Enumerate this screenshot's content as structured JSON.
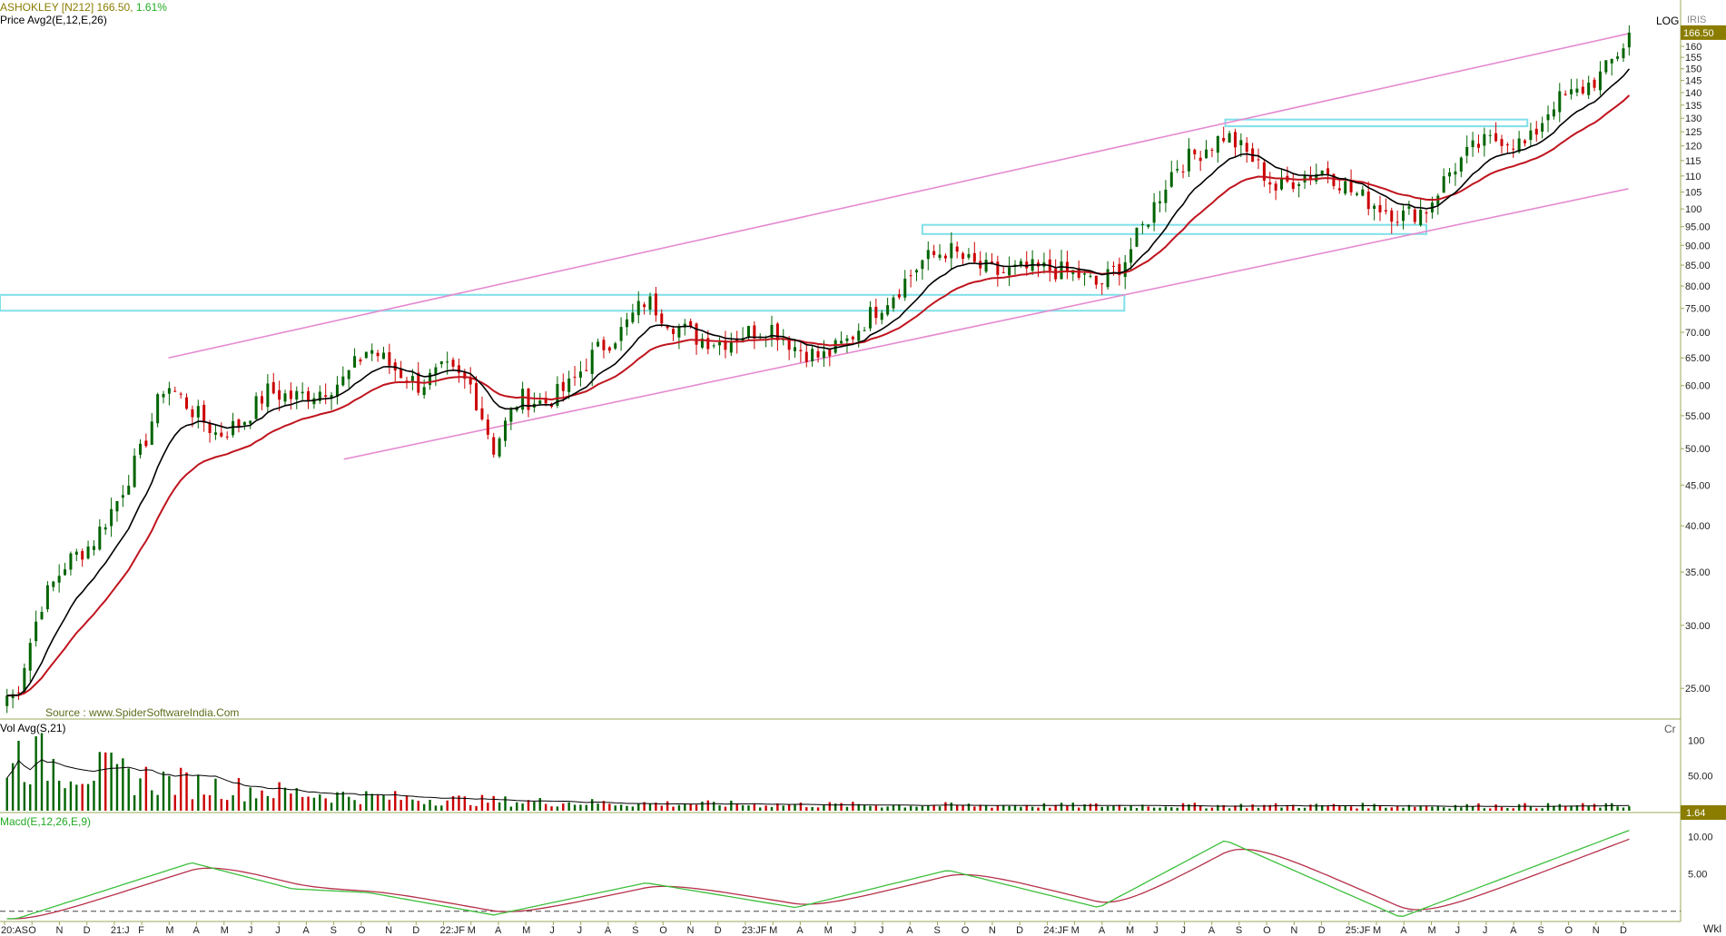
{
  "header": {
    "symbol": "ASHOKLEY [N212]",
    "last": "166.50,",
    "change": "1.61%",
    "indicator_line": "Price  Avg2(E,12,E,26)",
    "scale_mode": "LOG",
    "scale_tag": "IRIS",
    "source": "Source : www.SpiderSoftwareIndia.Com"
  },
  "colors": {
    "up": "#006400",
    "down": "#cc0000",
    "ema12": "#000000",
    "ema26": "#c0141e",
    "channel": "#e58ad0",
    "zone": "#7fe0e8",
    "macd": "#3cbf3c",
    "signal": "#b5304a",
    "axis": "#6b8e23",
    "price_tag_bg": "#8b7d00"
  },
  "price_pane": {
    "yaxis_ticks": [
      "160",
      "155",
      "150",
      "145",
      "140",
      "135",
      "130",
      "125",
      "120",
      "115",
      "110",
      "105",
      "100",
      "95.00",
      "90.00",
      "85.00",
      "80.00",
      "75.00",
      "70.00",
      "65.00",
      "60.00",
      "55.00",
      "50.00",
      "45.00",
      "40.00",
      "35.00",
      "30.00",
      "25.00"
    ],
    "last_price_tag": "166.50"
  },
  "volume_pane": {
    "label": "Vol  Avg(S,21)",
    "unit": "Cr",
    "yaxis_ticks": [
      "100",
      "50.00"
    ],
    "last_tag": "1.64"
  },
  "macd_pane": {
    "label": "Macd(E,12,26,E,9)",
    "yaxis_ticks": [
      "10.00",
      "5.00"
    ]
  },
  "xaxis": {
    "labels": [
      "20:AS",
      "O",
      "N",
      "D",
      "21:J",
      "F",
      "M",
      "A",
      "M",
      "J",
      "J",
      "A",
      "S",
      "O",
      "N",
      "D",
      "22:JF",
      "M",
      "A",
      "M",
      "J",
      "J",
      "A",
      "S",
      "O",
      "N",
      "D",
      "23:JF",
      "M",
      "A",
      "M",
      "J",
      "J",
      "A",
      "S",
      "O",
      "N",
      "D",
      "24:JF",
      "M",
      "A",
      "M",
      "J",
      "J",
      "A",
      "S",
      "O",
      "N",
      "D",
      "25:JF",
      "M",
      "A",
      "M",
      "J",
      "J",
      "A",
      "S",
      "O",
      "N",
      "D"
    ],
    "period": "Wkl"
  },
  "chart_data": {
    "type": "candlestick",
    "title": "ASHOKLEY [N212]",
    "scale": "log",
    "period": "weekly",
    "ylim": [
      23,
      170
    ],
    "last_close": 166.5,
    "change_pct": 1.61,
    "x_range": [
      "2020-08",
      "2025-12"
    ],
    "close_keypoints": [
      {
        "date": "2020-08",
        "close": 24.5
      },
      {
        "date": "2020-09",
        "close": 32
      },
      {
        "date": "2020-10",
        "close": 36
      },
      {
        "date": "2020-11",
        "close": 38
      },
      {
        "date": "2020-12",
        "close": 43
      },
      {
        "date": "2021-01",
        "close": 50
      },
      {
        "date": "2021-02",
        "close": 62
      },
      {
        "date": "2021-02",
        "close": 60
      },
      {
        "date": "2021-03",
        "close": 56
      },
      {
        "date": "2021-04",
        "close": 52
      },
      {
        "date": "2021-05",
        "close": 54
      },
      {
        "date": "2021-06",
        "close": 59
      },
      {
        "date": "2021-07",
        "close": 58
      },
      {
        "date": "2021-08",
        "close": 59
      },
      {
        "date": "2021-09",
        "close": 61
      },
      {
        "date": "2021-10",
        "close": 67
      },
      {
        "date": "2021-11",
        "close": 63
      },
      {
        "date": "2021-12",
        "close": 60
      },
      {
        "date": "2022-01",
        "close": 63
      },
      {
        "date": "2022-02",
        "close": 60
      },
      {
        "date": "2022-03",
        "close": 50
      },
      {
        "date": "2022-04",
        "close": 58
      },
      {
        "date": "2022-05",
        "close": 57
      },
      {
        "date": "2022-06",
        "close": 60
      },
      {
        "date": "2022-07",
        "close": 66
      },
      {
        "date": "2022-08",
        "close": 70
      },
      {
        "date": "2022-09",
        "close": 77
      },
      {
        "date": "2022-10",
        "close": 72
      },
      {
        "date": "2022-11",
        "close": 69
      },
      {
        "date": "2022-12",
        "close": 68
      },
      {
        "date": "2023-01",
        "close": 70
      },
      {
        "date": "2023-02",
        "close": 71
      },
      {
        "date": "2023-03",
        "close": 67
      },
      {
        "date": "2023-04",
        "close": 65
      },
      {
        "date": "2023-05",
        "close": 68
      },
      {
        "date": "2023-06",
        "close": 74
      },
      {
        "date": "2023-07",
        "close": 79
      },
      {
        "date": "2023-08",
        "close": 86
      },
      {
        "date": "2023-09",
        "close": 89
      },
      {
        "date": "2023-10",
        "close": 85
      },
      {
        "date": "2023-11",
        "close": 83
      },
      {
        "date": "2023-12",
        "close": 84
      },
      {
        "date": "2024-01",
        "close": 84
      },
      {
        "date": "2024-02",
        "close": 83
      },
      {
        "date": "2024-03",
        "close": 80
      },
      {
        "date": "2024-04",
        "close": 86
      },
      {
        "date": "2024-05",
        "close": 98
      },
      {
        "date": "2024-06",
        "close": 113
      },
      {
        "date": "2024-07",
        "close": 118
      },
      {
        "date": "2024-08",
        "close": 124
      },
      {
        "date": "2024-09",
        "close": 116
      },
      {
        "date": "2024-10",
        "close": 106
      },
      {
        "date": "2024-11",
        "close": 110
      },
      {
        "date": "2024-12",
        "close": 112
      },
      {
        "date": "2025-01",
        "close": 105
      },
      {
        "date": "2025-02",
        "close": 101
      },
      {
        "date": "2025-03",
        "close": 98
      },
      {
        "date": "2025-04",
        "close": 100
      },
      {
        "date": "2025-05",
        "close": 112
      },
      {
        "date": "2025-06",
        "close": 120
      },
      {
        "date": "2025-07",
        "close": 123
      },
      {
        "date": "2025-08",
        "close": 120
      },
      {
        "date": "2025-09",
        "close": 136
      },
      {
        "date": "2025-10",
        "close": 140
      },
      {
        "date": "2025-11",
        "close": 148
      },
      {
        "date": "2025-12",
        "close": 166.5
      }
    ],
    "channel_lines": [
      {
        "name": "upper",
        "points": [
          {
            "date": "2021-02",
            "price": 65
          },
          {
            "date": "2025-12",
            "price": 166
          }
        ]
      },
      {
        "name": "lower",
        "points": [
          {
            "date": "2021-09",
            "price": 48.5
          },
          {
            "date": "2025-12",
            "price": 106
          }
        ]
      }
    ],
    "zones": [
      {
        "from": "2020-08",
        "to": "2024-04",
        "low": 74.5,
        "high": 78
      },
      {
        "from": "2023-08",
        "to": "2025-04",
        "low": 93,
        "high": 95.5
      },
      {
        "from": "2024-08",
        "to": "2025-08",
        "low": 127,
        "high": 129.5
      }
    ],
    "volume_ylim": [
      0,
      120
    ],
    "volume_unit": "Cr",
    "volume_last": 1.64,
    "macd_ylim": [
      -1,
      12
    ],
    "macd_keypoints": [
      {
        "date": "2020-08",
        "macd": -1
      },
      {
        "date": "2021-03",
        "macd": 6.5
      },
      {
        "date": "2021-07",
        "macd": 3
      },
      {
        "date": "2021-10",
        "macd": 2.5
      },
      {
        "date": "2022-03",
        "macd": -0.5
      },
      {
        "date": "2022-09",
        "macd": 3.8
      },
      {
        "date": "2023-03",
        "macd": 0.5
      },
      {
        "date": "2023-09",
        "macd": 5.5
      },
      {
        "date": "2024-03",
        "macd": 0.5
      },
      {
        "date": "2024-08",
        "macd": 9.5
      },
      {
        "date": "2025-03",
        "macd": -0.8
      },
      {
        "date": "2025-12",
        "macd": 11
      }
    ]
  }
}
